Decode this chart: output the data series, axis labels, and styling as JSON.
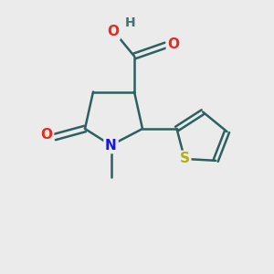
{
  "background_color": "#ebebeb",
  "bond_color": "#2d6060",
  "bond_lw": 1.8,
  "dbo": 0.12,
  "atom_colors": {
    "O": "#e8291c",
    "N": "#1515e0",
    "S": "#b0b010",
    "H": "#457070"
  },
  "fs": 11,
  "figsize": [
    3.0,
    3.0
  ],
  "dpi": 100
}
